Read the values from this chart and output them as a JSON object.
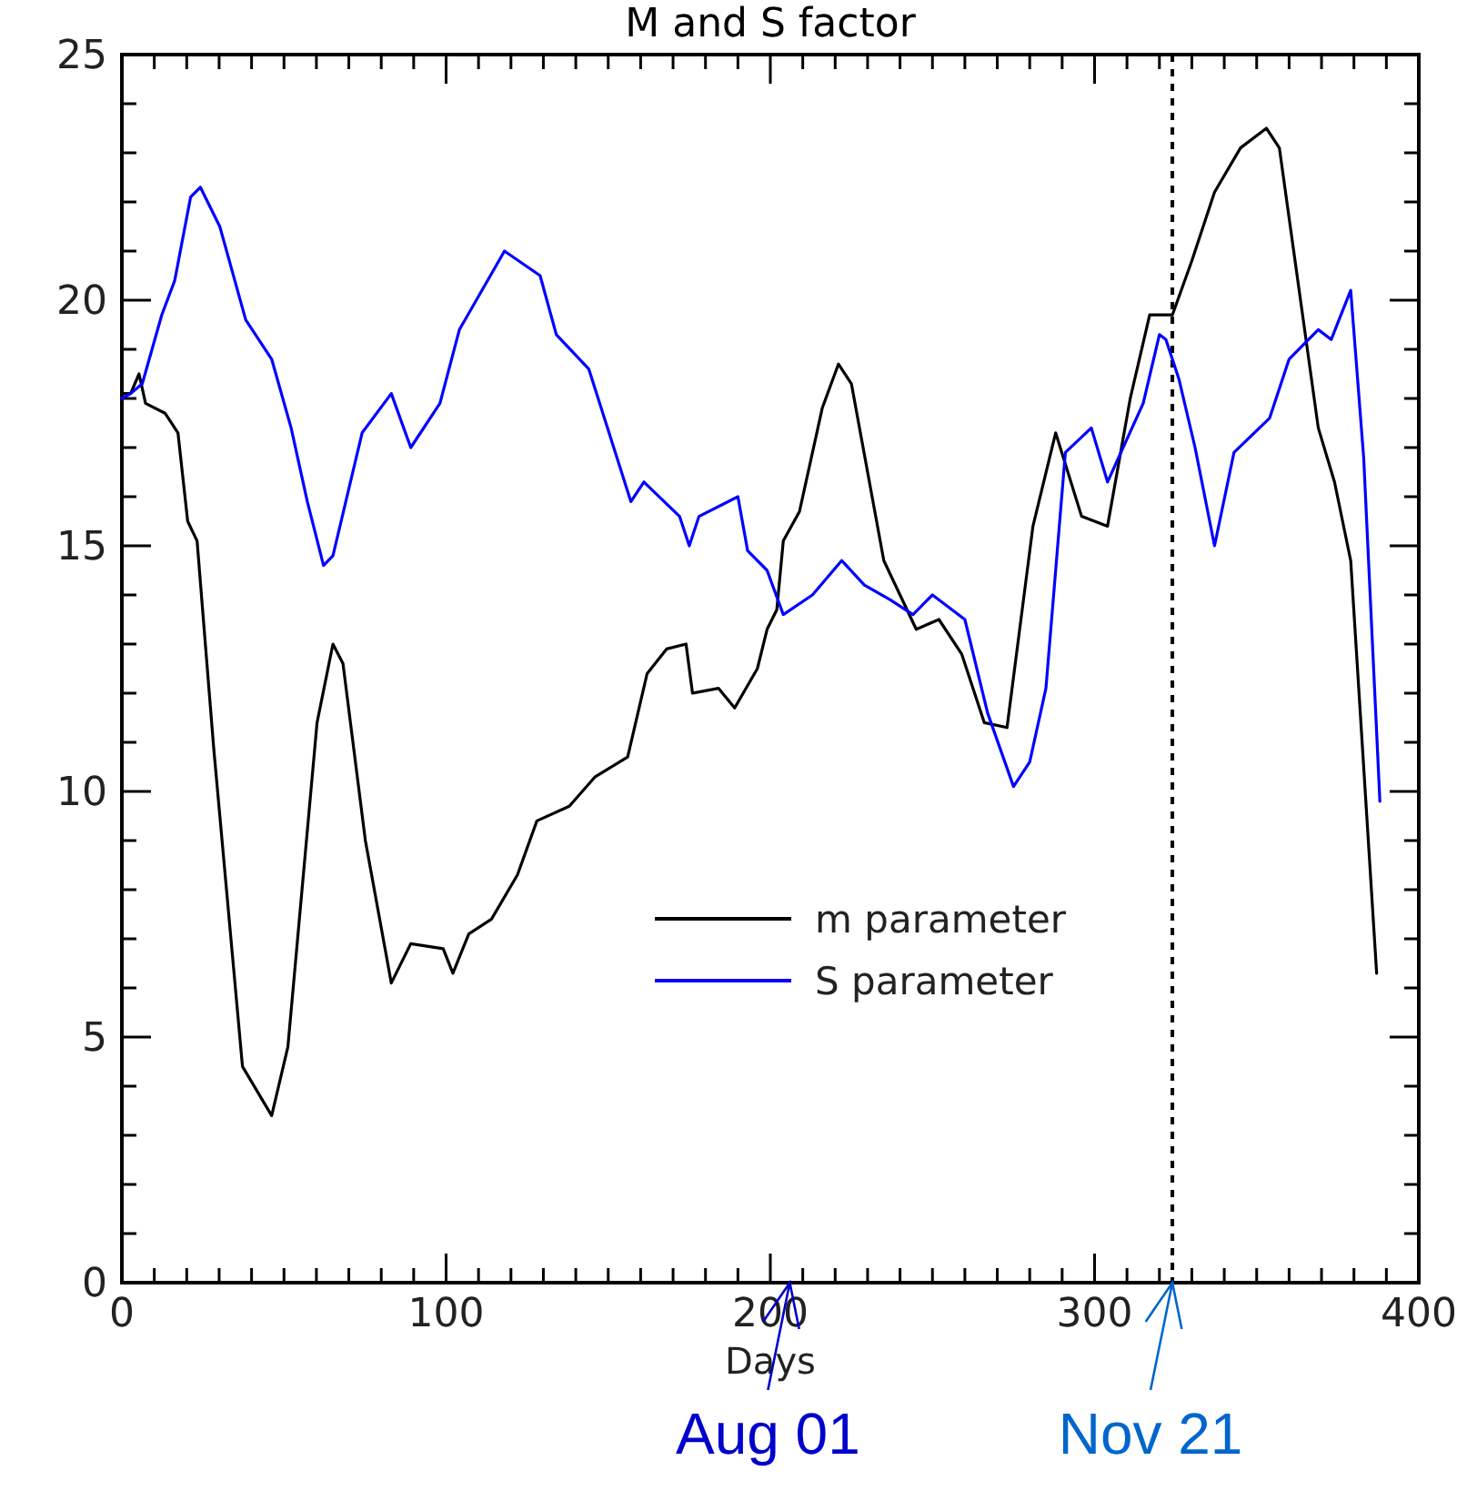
{
  "chart_data": {
    "type": "line",
    "title": "M and S factor",
    "xlabel": "Days",
    "xlim": [
      0,
      400
    ],
    "ylim": [
      0,
      25
    ],
    "xticks": [
      0,
      {
        "value": 10,
        "label": null
      },
      {
        "value": 20,
        "label": null
      },
      {
        "value": 30,
        "label": null
      },
      {
        "value": 40,
        "label": null
      },
      {
        "value": 50,
        "label": null
      },
      {
        "value": 60,
        "label": null
      },
      {
        "value": 70,
        "label": null
      },
      {
        "value": 80,
        "label": null
      },
      {
        "value": 90,
        "label": null
      },
      100,
      {
        "value": 110,
        "label": null
      },
      {
        "value": 120,
        "label": null
      },
      {
        "value": 130,
        "label": null
      },
      {
        "value": 140,
        "label": null
      },
      {
        "value": 150,
        "label": null
      },
      {
        "value": 160,
        "label": null
      },
      {
        "value": 170,
        "label": null
      },
      {
        "value": 180,
        "label": null
      },
      {
        "value": 190,
        "label": null
      },
      200,
      {
        "value": 210,
        "label": null
      },
      {
        "value": 220,
        "label": null
      },
      {
        "value": 230,
        "label": null
      },
      {
        "value": 240,
        "label": null
      },
      {
        "value": 250,
        "label": null
      },
      {
        "value": 260,
        "label": null
      },
      {
        "value": 270,
        "label": null
      },
      {
        "value": 280,
        "label": null
      },
      {
        "value": 290,
        "label": null
      },
      300,
      {
        "value": 310,
        "label": null
      },
      {
        "value": 320,
        "label": null
      },
      {
        "value": 330,
        "label": null
      },
      {
        "value": 340,
        "label": null
      },
      {
        "value": 350,
        "label": null
      },
      {
        "value": 360,
        "label": null
      },
      {
        "value": 370,
        "label": null
      },
      {
        "value": 380,
        "label": null
      },
      {
        "value": 390,
        "label": null
      },
      400
    ],
    "yticks": [
      0,
      {
        "value": 1,
        "label": null
      },
      {
        "value": 2,
        "label": null
      },
      {
        "value": 3,
        "label": null
      },
      {
        "value": 4,
        "label": null
      },
      5,
      {
        "value": 6,
        "label": null
      },
      {
        "value": 7,
        "label": null
      },
      {
        "value": 8,
        "label": null
      },
      {
        "value": 9,
        "label": null
      },
      10,
      {
        "value": 11,
        "label": null
      },
      {
        "value": 12,
        "label": null
      },
      {
        "value": 13,
        "label": null
      },
      {
        "value": 14,
        "label": null
      },
      15,
      {
        "value": 16,
        "label": null
      },
      {
        "value": 17,
        "label": null
      },
      {
        "value": 18,
        "label": null
      },
      {
        "value": 19,
        "label": null
      },
      20,
      {
        "value": 21,
        "label": null
      },
      {
        "value": 22,
        "label": null
      },
      {
        "value": 23,
        "label": null
      },
      {
        "value": 24,
        "label": null
      },
      25
    ],
    "grid": false,
    "legend": "right",
    "marker": "none",
    "line_style": "solid",
    "ref_lines": [
      {
        "axis": "x",
        "value": 324,
        "color": "#000000",
        "line_style": "dotted"
      }
    ],
    "annotations": [
      "Aug 01",
      {
        "text": "Nov 21",
        "x": 324,
        "y": 0
      }
    ],
    "series": [
      {
        "name": "m parameter",
        "color": "#000000",
        "x": [
          0,
          2.7,
          5.3,
          7.3,
          13.3,
          17.3,
          20.3,
          23.2,
          28.3,
          37.2,
          46.2,
          51.2,
          60.2,
          65.1,
          68.2,
          75.1,
          83.1,
          89.1,
          99.1,
          102.1,
          107,
          114,
          122,
          128,
          138,
          146,
          156,
          162,
          168,
          174,
          176,
          184,
          189,
          196,
          199,
          202,
          204,
          209,
          216,
          221,
          225,
          235,
          240,
          245,
          252,
          259,
          266,
          273,
          281,
          288,
          296,
          304,
          311,
          317,
          324,
          330,
          337,
          345,
          353,
          357,
          361,
          369,
          374,
          379,
          387
        ],
        "values": [
          18.1,
          18.1,
          18.5,
          17.9,
          17.7,
          17.3,
          15.5,
          15.1,
          10.9,
          4.4,
          3.4,
          4.8,
          11.4,
          13.0,
          12.6,
          9.0,
          6.1,
          6.9,
          6.8,
          6.3,
          7.1,
          7.4,
          8.3,
          9.4,
          9.7,
          10.3,
          10.7,
          12.4,
          12.9,
          13.0,
          12.0,
          12.1,
          11.7,
          12.5,
          13.3,
          13.7,
          15.1,
          15.7,
          17.8,
          18.7,
          18.3,
          14.7,
          14.0,
          13.3,
          13.5,
          12.8,
          11.4,
          11.3,
          15.4,
          17.3,
          15.6,
          15.4,
          18.0,
          19.7,
          19.7,
          20.8,
          22.2,
          23.1,
          23.5,
          23.1,
          21.2,
          17.4,
          16.3,
          14.7,
          6.3
        ]
      },
      {
        "name": "S parameter",
        "color": "#0000ff",
        "x": [
          0,
          2.7,
          6.3,
          12.3,
          16.3,
          21.2,
          24.2,
          30.2,
          38.2,
          46.2,
          52.2,
          57.2,
          62.2,
          65.1,
          74.1,
          83.1,
          89.1,
          98.1,
          104.1,
          118,
          129,
          134,
          144,
          157,
          161,
          172,
          175,
          178,
          190,
          193,
          199,
          204,
          213,
          222,
          229,
          237,
          244,
          250,
          260,
          267,
          275,
          280,
          285,
          291,
          299,
          304,
          315,
          320,
          322,
          326,
          331,
          337,
          343,
          354,
          360,
          369,
          373,
          379,
          383,
          388
        ],
        "values": [
          18.0,
          18.1,
          18.3,
          19.7,
          20.4,
          22.1,
          22.3,
          21.5,
          19.6,
          18.8,
          17.4,
          15.9,
          14.6,
          14.8,
          17.3,
          18.1,
          17.0,
          17.9,
          19.4,
          21.0,
          20.5,
          19.3,
          18.6,
          15.9,
          16.3,
          15.6,
          15.0,
          15.6,
          16.0,
          14.9,
          14.5,
          13.6,
          14.0,
          14.7,
          14.2,
          13.9,
          13.6,
          14.0,
          13.5,
          11.6,
          10.1,
          10.6,
          12.1,
          16.9,
          17.4,
          16.3,
          17.9,
          19.3,
          19.2,
          18.4,
          17.0,
          15.0,
          16.9,
          17.6,
          18.8,
          19.4,
          19.2,
          20.2,
          16.8,
          9.8
        ]
      }
    ]
  }
}
